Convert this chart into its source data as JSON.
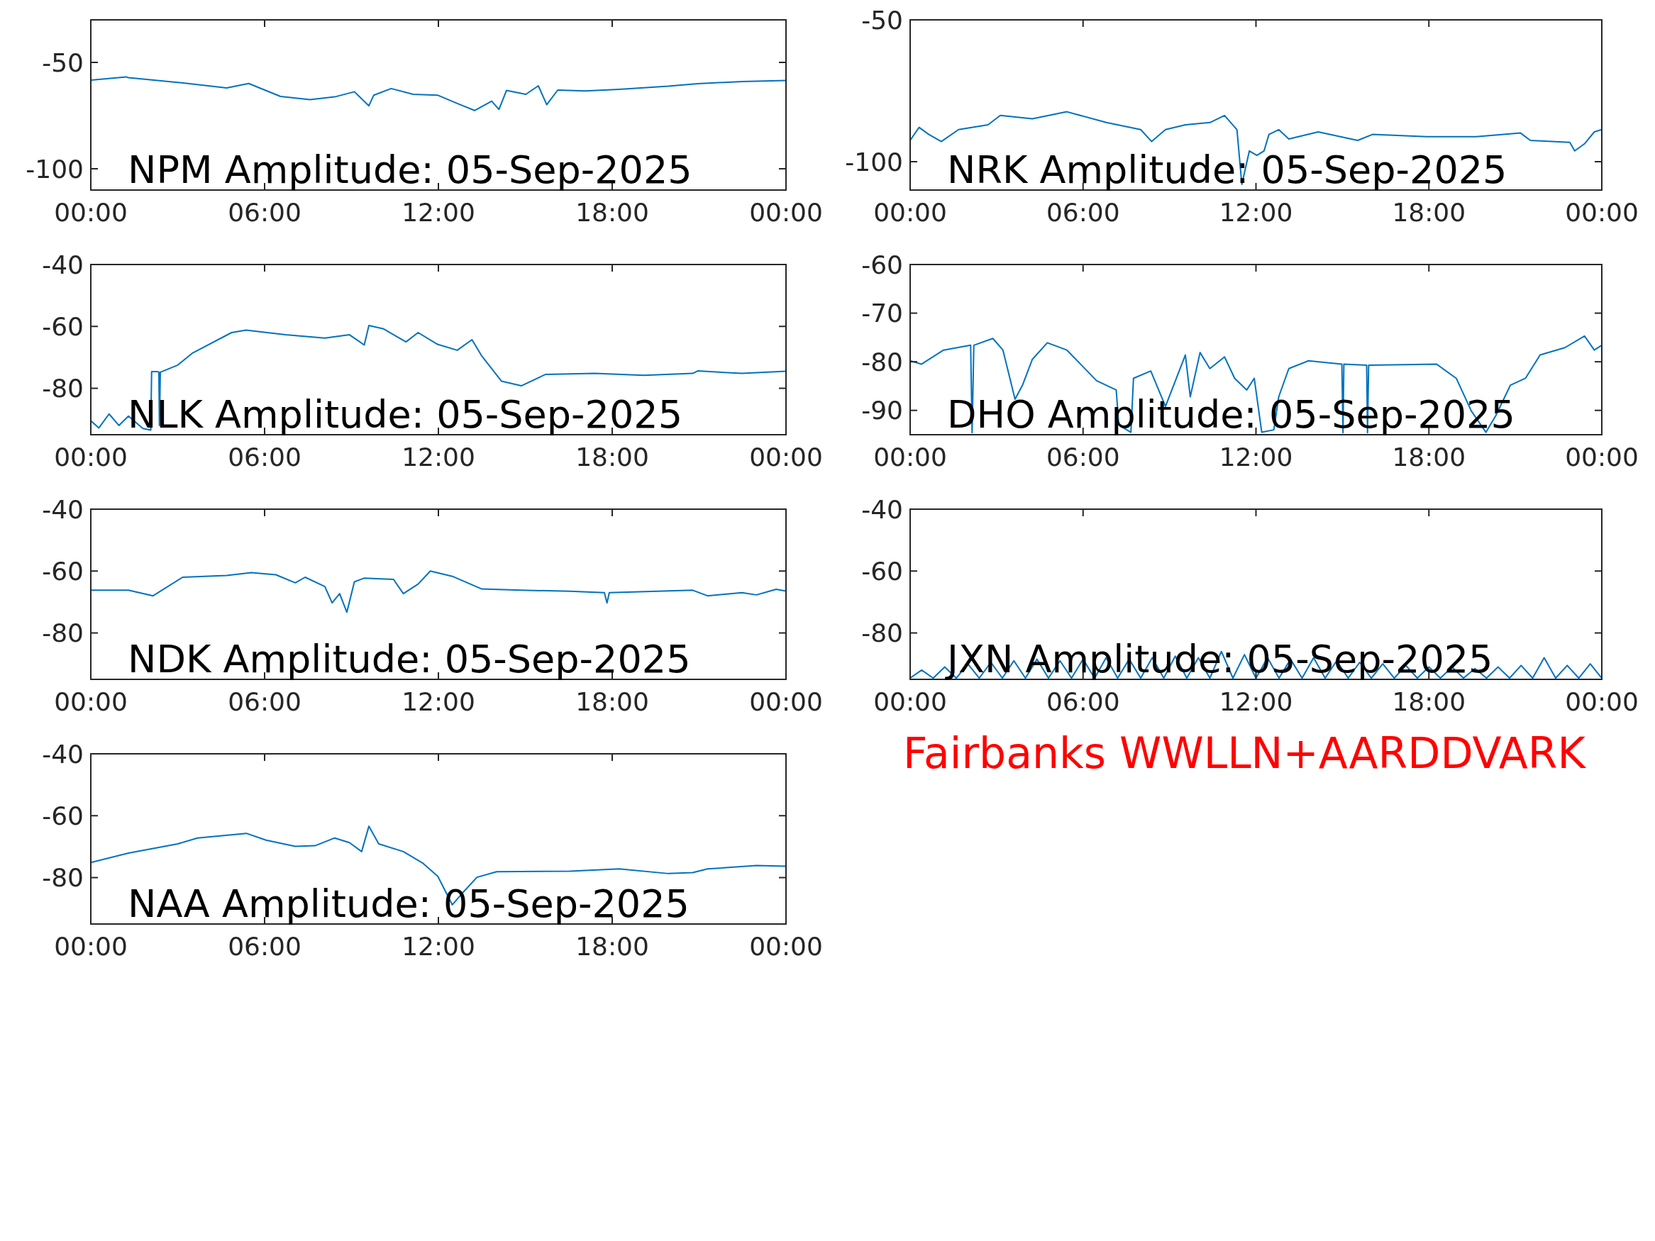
{
  "chart_data": [
    {
      "type": "line",
      "title": "NPM Amplitude: 05-Sep-2025",
      "color": "#0072bd",
      "xlim": [
        0,
        24
      ],
      "ylim": [
        -110,
        -30
      ],
      "yticks": [
        -100,
        -50
      ],
      "xticks": [
        {
          "value": 0,
          "label": "00:00"
        },
        {
          "value": 6,
          "label": "06:00"
        },
        {
          "value": 12,
          "label": "12:00"
        },
        {
          "value": 18,
          "label": "18:00"
        },
        {
          "value": 24,
          "label": "00:00"
        }
      ],
      "x": [
        0,
        1.22,
        1.3,
        3.0,
        4.69,
        5.45,
        6.55,
        7.57,
        8.42,
        9.1,
        9.6,
        9.77,
        10.37,
        11.13,
        11.97,
        12.65,
        13.25,
        13.84,
        14.09,
        14.35,
        15.02,
        15.45,
        15.74,
        16.12,
        17.06,
        18.24,
        19.94,
        20.95,
        22.48,
        24
      ],
      "values": [
        -58.3,
        -56.8,
        -57.2,
        -59.4,
        -62,
        -59.9,
        -66,
        -67.5,
        -66.2,
        -63.8,
        -70.4,
        -65.4,
        -62.3,
        -65,
        -65.4,
        -69.3,
        -72.6,
        -68.2,
        -72.1,
        -63.2,
        -65,
        -61,
        -69.9,
        -63,
        -63.4,
        -62.7,
        -61.2,
        -60,
        -59,
        -58.5
      ]
    },
    {
      "type": "line",
      "title": "NRK Amplitude: 05-Sep-2025",
      "color": "#0072bd",
      "xlim": [
        0,
        24
      ],
      "ylim": [
        -110,
        -50
      ],
      "yticks": [
        -100,
        -50
      ],
      "xticks": [
        {
          "value": 0,
          "label": "00:00"
        },
        {
          "value": 6,
          "label": "06:00"
        },
        {
          "value": 12,
          "label": "12:00"
        },
        {
          "value": 18,
          "label": "18:00"
        },
        {
          "value": 24,
          "label": "00:00"
        }
      ],
      "x": [
        0,
        0.31,
        0.65,
        1.08,
        1.68,
        2.7,
        3.13,
        4.24,
        5.44,
        6.81,
        8.0,
        8.38,
        8.86,
        9.55,
        10.4,
        10.91,
        11.34,
        11.51,
        11.77,
        12.03,
        12.28,
        12.45,
        12.79,
        13.14,
        14.16,
        15.53,
        16.04,
        17.93,
        19.64,
        21.18,
        21.52,
        22.89,
        23.06,
        23.4,
        23.74,
        24
      ],
      "values": [
        -92.5,
        -87.9,
        -90.4,
        -92.9,
        -88.7,
        -87,
        -83.7,
        -84.9,
        -82.4,
        -86.2,
        -88.7,
        -92.9,
        -88.7,
        -87,
        -86.2,
        -83.7,
        -88.7,
        -108,
        -96.2,
        -97.8,
        -96.2,
        -90.4,
        -88.7,
        -92,
        -89.5,
        -92.5,
        -90.4,
        -91.2,
        -91.2,
        -89.9,
        -92.5,
        -93.2,
        -96.2,
        -93.7,
        -89.5,
        -88.7
      ]
    },
    {
      "type": "line",
      "title": "NLK Amplitude: 05-Sep-2025",
      "color": "#0072bd",
      "xlim": [
        0,
        24
      ],
      "ylim": [
        -95,
        -40
      ],
      "yticks": [
        -80,
        -60,
        -40
      ],
      "xticks": [
        {
          "value": 0,
          "label": "00:00"
        },
        {
          "value": 6,
          "label": "06:00"
        },
        {
          "value": 12,
          "label": "12:00"
        },
        {
          "value": 18,
          "label": "18:00"
        },
        {
          "value": 24,
          "label": "00:00"
        }
      ],
      "x": [
        0,
        0.28,
        0.63,
        0.97,
        1.3,
        1.8,
        2.07,
        2.1,
        2.3,
        2.35,
        2.37,
        2.4,
        3.0,
        3.5,
        4.86,
        5.36,
        6.72,
        8.08,
        8.93,
        9.44,
        9.6,
        10.11,
        10.88,
        11.3,
        11.97,
        12.65,
        13.16,
        13.5,
        14.18,
        14.86,
        15.7,
        17.4,
        19.09,
        20.78,
        20.95,
        22.48,
        24
      ],
      "values": [
        -90.5,
        -92.8,
        -88.3,
        -92,
        -89,
        -93,
        -93.5,
        -74.6,
        -74.6,
        -74.8,
        -92,
        -74.8,
        -72.5,
        -68.7,
        -62,
        -61.2,
        -62.7,
        -63.8,
        -62.7,
        -66,
        -59.7,
        -60.8,
        -65,
        -62,
        -65.8,
        -67.7,
        -64.3,
        -69.6,
        -77.7,
        -79.2,
        -75.5,
        -75.2,
        -75.8,
        -75.2,
        -74.4,
        -75.2,
        -74.5
      ]
    },
    {
      "type": "line",
      "title": "DHO Amplitude: 05-Sep-2025",
      "color": "#0072bd",
      "xlim": [
        0,
        24
      ],
      "ylim": [
        -95,
        -60
      ],
      "yticks": [
        -90,
        -80,
        -70,
        -60
      ],
      "xticks": [
        {
          "value": 0,
          "label": "00:00"
        },
        {
          "value": 6,
          "label": "06:00"
        },
        {
          "value": 12,
          "label": "12:00"
        },
        {
          "value": 18,
          "label": "18:00"
        },
        {
          "value": 24,
          "label": "00:00"
        }
      ],
      "x": [
        0,
        0.39,
        1.16,
        2.1,
        2.15,
        2.21,
        2.87,
        3.22,
        3.64,
        3.9,
        4.24,
        4.76,
        5.44,
        6.47,
        7.15,
        7.24,
        7.66,
        7.75,
        8.35,
        8.86,
        9.55,
        9.72,
        10.06,
        10.4,
        10.91,
        11.26,
        11.68,
        11.94,
        12.2,
        12.62,
        12.79,
        13.14,
        13.82,
        14.98,
        15.02,
        15.05,
        15.84,
        15.87,
        15.91,
        18.27,
        18.95,
        19.47,
        19.98,
        20.32,
        20.83,
        21.35,
        21.86,
        22.72,
        23.4,
        23.74,
        24
      ],
      "values": [
        -79.8,
        -80.5,
        -77.6,
        -76.6,
        -94.6,
        -76.6,
        -75.2,
        -77.6,
        -87.7,
        -84.8,
        -79.5,
        -76.1,
        -77.6,
        -83.9,
        -85.8,
        -93,
        -94.5,
        -83.4,
        -81.9,
        -89.2,
        -78.6,
        -87.2,
        -78.1,
        -81.4,
        -79,
        -83.4,
        -85.8,
        -83.4,
        -94.5,
        -94,
        -87.2,
        -81.4,
        -79.8,
        -80.5,
        -94.6,
        -80.5,
        -80.7,
        -94.6,
        -80.7,
        -80.5,
        -83.4,
        -90.1,
        -94.5,
        -91.1,
        -84.8,
        -83.4,
        -78.6,
        -77.1,
        -74.7,
        -77.6,
        -76.6
      ]
    },
    {
      "type": "line",
      "title": "NDK Amplitude: 05-Sep-2025",
      "color": "#0072bd",
      "xlim": [
        0,
        24
      ],
      "ylim": [
        -95,
        -40
      ],
      "yticks": [
        -80,
        -60,
        -40
      ],
      "xticks": [
        {
          "value": 0,
          "label": "00:00"
        },
        {
          "value": 6,
          "label": "06:00"
        },
        {
          "value": 12,
          "label": "12:00"
        },
        {
          "value": 18,
          "label": "18:00"
        },
        {
          "value": 24,
          "label": "00:00"
        }
      ],
      "x": [
        0,
        1.3,
        2.15,
        3.17,
        4.69,
        5.54,
        6.39,
        7.06,
        7.4,
        8.08,
        8.33,
        8.59,
        8.84,
        9.1,
        9.43,
        10.45,
        10.79,
        11.3,
        11.72,
        12.48,
        13.5,
        14.85,
        16.55,
        17.73,
        17.82,
        17.9,
        20.78,
        21.29,
        22.48,
        22.98,
        23.66,
        24
      ],
      "values": [
        -66.2,
        -66.2,
        -68,
        -62,
        -61.4,
        -60.5,
        -61.2,
        -63.8,
        -62,
        -65,
        -70.3,
        -67.3,
        -73.3,
        -63.5,
        -62.3,
        -62.7,
        -67.3,
        -64.2,
        -60,
        -61.7,
        -65.8,
        -66.2,
        -66.5,
        -67,
        -70.3,
        -67,
        -66.2,
        -68,
        -67,
        -67.7,
        -65.9,
        -66.5
      ]
    },
    {
      "type": "line",
      "title": "JXN Amplitude: 05-Sep-2025",
      "color": "#0072bd",
      "xlim": [
        0,
        24
      ],
      "ylim": [
        -95,
        -40
      ],
      "yticks": [
        -80,
        -60,
        -40
      ],
      "xticks": [
        {
          "value": 0,
          "label": "00:00"
        },
        {
          "value": 6,
          "label": "06:00"
        },
        {
          "value": 12,
          "label": "12:00"
        },
        {
          "value": 18,
          "label": "18:00"
        },
        {
          "value": 24,
          "label": "00:00"
        }
      ],
      "annotations": [
        "Fairbanks WWLLN+AARDDVARK"
      ],
      "x": [
        0,
        0.4,
        0.8,
        1.2,
        1.6,
        2.0,
        2.4,
        2.8,
        3.2,
        3.6,
        4.0,
        4.4,
        4.8,
        5.2,
        5.6,
        6.0,
        6.4,
        6.8,
        7.2,
        7.6,
        8.0,
        8.4,
        8.8,
        9.2,
        9.6,
        10.0,
        10.4,
        10.8,
        11.2,
        11.6,
        12.0,
        12.4,
        12.8,
        13.2,
        13.6,
        14.0,
        14.4,
        14.8,
        15.2,
        15.6,
        16.0,
        16.4,
        16.8,
        17.2,
        17.6,
        18.0,
        18.4,
        18.8,
        19.2,
        19.6,
        20.0,
        20.4,
        20.8,
        21.2,
        21.6,
        22.0,
        22.4,
        22.8,
        23.2,
        23.6,
        24.0
      ],
      "values": [
        -94.6,
        -92,
        -94.6,
        -91,
        -94.6,
        -90,
        -94.6,
        -89.5,
        -94.6,
        -89,
        -94.6,
        -88.5,
        -94.6,
        -89,
        -94.6,
        -88.5,
        -94.6,
        -88,
        -94.6,
        -88.5,
        -94.6,
        -88,
        -94.6,
        -87.5,
        -94.6,
        -88,
        -94.6,
        -86,
        -94.6,
        -87,
        -94.6,
        -88,
        -94.6,
        -88.5,
        -94.6,
        -88,
        -94.6,
        -89,
        -94.6,
        -89.5,
        -94.6,
        -90,
        -94.6,
        -90.5,
        -94.6,
        -91,
        -94.6,
        -91,
        -94.6,
        -91.5,
        -94.6,
        -91,
        -94.6,
        -90.5,
        -94.6,
        -88,
        -94.6,
        -90.5,
        -94.6,
        -90,
        -94.6
      ]
    },
    {
      "type": "line",
      "title": "NAA Amplitude: 05-Sep-2025",
      "color": "#0072bd",
      "xlim": [
        0,
        24
      ],
      "ylim": [
        -95,
        -40
      ],
      "yticks": [
        -80,
        -60,
        -40
      ],
      "xticks": [
        {
          "value": 0,
          "label": "00:00"
        },
        {
          "value": 6,
          "label": "06:00"
        },
        {
          "value": 12,
          "label": "12:00"
        },
        {
          "value": 18,
          "label": "18:00"
        },
        {
          "value": 24,
          "label": "00:00"
        }
      ],
      "x": [
        0,
        1.3,
        3.0,
        3.68,
        5.37,
        6.05,
        7.06,
        7.74,
        8.42,
        8.93,
        9.35,
        9.6,
        9.94,
        10.79,
        11.47,
        11.98,
        12.48,
        12.82,
        13.33,
        14.01,
        16.55,
        18.24,
        19.94,
        20.78,
        21.29,
        22.98,
        24
      ],
      "values": [
        -75.1,
        -72.1,
        -69.1,
        -67.2,
        -65.7,
        -67.9,
        -69.9,
        -69.7,
        -67.2,
        -68.7,
        -71.6,
        -63.4,
        -69.1,
        -71.6,
        -75.4,
        -79.6,
        -88.8,
        -85.1,
        -79.9,
        -78.1,
        -77.9,
        -77.2,
        -78.7,
        -78.4,
        -77.2,
        -76.1,
        -76.3
      ]
    }
  ]
}
